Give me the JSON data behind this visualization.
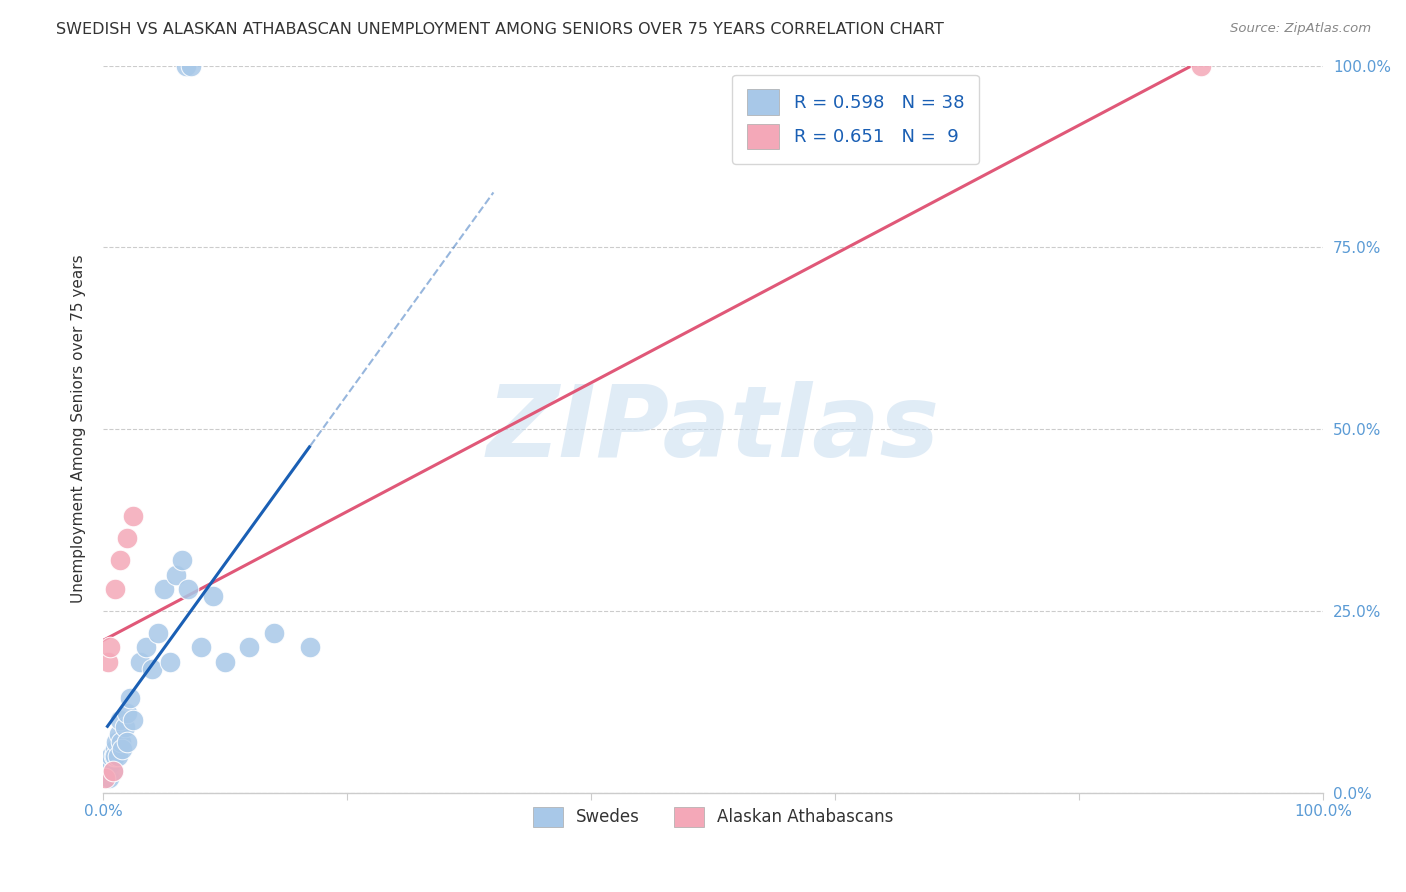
{
  "title": "SWEDISH VS ALASKAN ATHABASCAN UNEMPLOYMENT AMONG SENIORS OVER 75 YEARS CORRELATION CHART",
  "source": "Source: ZipAtlas.com",
  "ylabel": "Unemployment Among Seniors over 75 years",
  "xlim": [
    0,
    100
  ],
  "ylim": [
    0,
    100
  ],
  "grid_color": "#cccccc",
  "background_color": "#ffffff",
  "swedes_color": "#a8c8e8",
  "athabascan_color": "#f4a8b8",
  "swedes_line_color": "#1a5fb4",
  "athabascan_line_color": "#e05878",
  "R_swedes": 0.598,
  "N_swedes": 38,
  "R_athabascan": 0.651,
  "N_athabascan": 9,
  "swedes_x": [
    0.3,
    0.4,
    0.5,
    0.6,
    0.7,
    0.8,
    0.9,
    1.0,
    1.1,
    1.2,
    1.3,
    1.4,
    1.5,
    1.6,
    1.8,
    2.0,
    2.2,
    2.4,
    2.6,
    2.8,
    3.0,
    3.2,
    3.5,
    4.0,
    4.5,
    5.0,
    5.5,
    6.0,
    6.5,
    7.0,
    8.0,
    9.0,
    10.0,
    12.0,
    14.0,
    17.0,
    6.8,
    7.2
  ],
  "swedes_y": [
    2,
    3,
    2,
    4,
    5,
    3,
    5,
    6,
    7,
    5,
    8,
    10,
    7,
    6,
    9,
    11,
    8,
    13,
    10,
    15,
    18,
    14,
    20,
    17,
    22,
    28,
    18,
    30,
    32,
    28,
    20,
    27,
    18,
    20,
    22,
    20,
    100,
    100
  ],
  "athabascan_x": [
    0.2,
    0.4,
    0.6,
    0.8,
    1.0,
    1.4,
    2.0,
    2.5,
    90.0
  ],
  "athabascan_y": [
    2,
    18,
    20,
    3,
    28,
    32,
    35,
    38,
    100
  ],
  "watermark": "ZIPatlas",
  "legend_label_swedes": "Swedes",
  "legend_label_athabascan": "Alaskan Athabascans",
  "ytick_positions": [
    0,
    25,
    50,
    75,
    100
  ],
  "ytick_labels": [
    "0.0%",
    "25.0%",
    "50.0%",
    "75.0%",
    "100.0%"
  ],
  "title_color": "#333333",
  "tick_color": "#5b9bd5",
  "legend_text_color": "#1a5fb4",
  "legend_N_color": "#e05878"
}
